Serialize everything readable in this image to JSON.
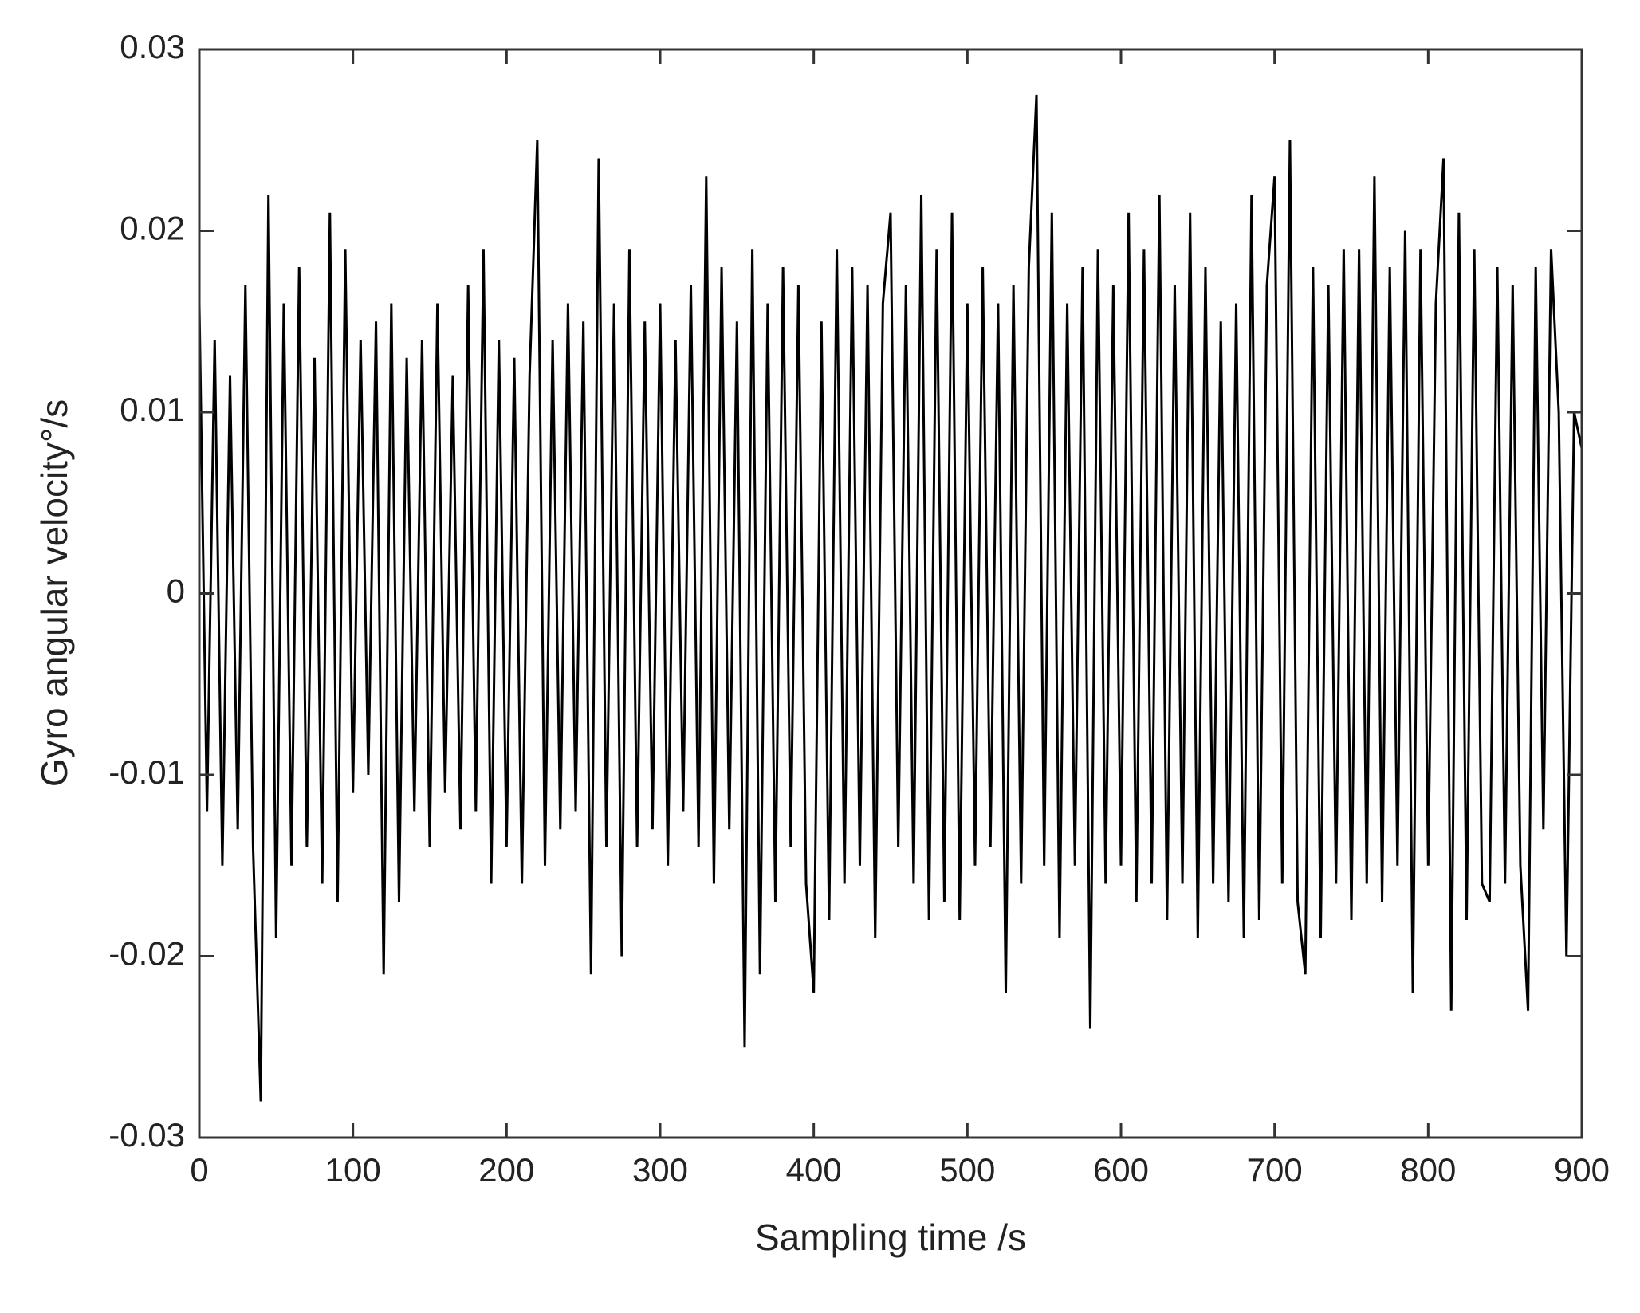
{
  "chart_data": {
    "type": "line",
    "xlabel": "Sampling time /s",
    "ylabel": "Gyro angular velocity°/s",
    "color": "#000000",
    "xlim": [
      0,
      900
    ],
    "ylim": [
      -0.03,
      0.03
    ],
    "xticks": [
      0,
      100,
      200,
      300,
      400,
      500,
      600,
      700,
      800,
      900
    ],
    "yticks": [
      -0.03,
      -0.02,
      -0.01,
      0,
      0.01,
      0.02,
      0.03
    ],
    "grid": false,
    "x": [
      0,
      5,
      10,
      15,
      20,
      25,
      30,
      35,
      40,
      45,
      50,
      55,
      60,
      65,
      70,
      75,
      80,
      85,
      90,
      95,
      100,
      105,
      110,
      115,
      120,
      125,
      130,
      135,
      140,
      145,
      150,
      155,
      160,
      165,
      170,
      175,
      180,
      185,
      190,
      195,
      200,
      205,
      210,
      215,
      220,
      225,
      230,
      235,
      240,
      245,
      250,
      255,
      260,
      265,
      270,
      275,
      280,
      285,
      290,
      295,
      300,
      305,
      310,
      315,
      320,
      325,
      330,
      335,
      340,
      345,
      350,
      355,
      360,
      365,
      370,
      375,
      380,
      385,
      390,
      395,
      400,
      405,
      410,
      415,
      420,
      425,
      430,
      435,
      440,
      445,
      450,
      455,
      460,
      465,
      470,
      475,
      480,
      485,
      490,
      495,
      500,
      505,
      510,
      515,
      520,
      525,
      530,
      535,
      540,
      545,
      550,
      555,
      560,
      565,
      570,
      575,
      580,
      585,
      590,
      595,
      600,
      605,
      610,
      615,
      620,
      625,
      630,
      635,
      640,
      645,
      650,
      655,
      660,
      665,
      670,
      675,
      680,
      685,
      690,
      695,
      700,
      705,
      710,
      715,
      720,
      725,
      730,
      735,
      740,
      745,
      750,
      755,
      760,
      765,
      770,
      775,
      780,
      785,
      790,
      795,
      800,
      805,
      810,
      815,
      820,
      825,
      830,
      835,
      840,
      845,
      850,
      855,
      860,
      865,
      870,
      875,
      880,
      885,
      890,
      895,
      900
    ],
    "values": [
      0.016,
      -0.012,
      0.014,
      -0.015,
      0.012,
      -0.013,
      0.017,
      -0.014,
      -0.028,
      0.022,
      -0.019,
      0.016,
      -0.015,
      0.018,
      -0.014,
      0.013,
      -0.016,
      0.021,
      -0.017,
      0.019,
      -0.011,
      0.014,
      -0.01,
      0.015,
      -0.021,
      0.016,
      -0.017,
      0.013,
      -0.012,
      0.014,
      -0.014,
      0.016,
      -0.011,
      0.012,
      -0.013,
      0.017,
      -0.012,
      0.019,
      -0.016,
      0.014,
      -0.014,
      0.013,
      -0.016,
      0.012,
      0.025,
      -0.015,
      0.014,
      -0.013,
      0.016,
      -0.012,
      0.015,
      -0.021,
      0.024,
      -0.014,
      0.016,
      -0.02,
      0.019,
      -0.014,
      0.015,
      -0.013,
      0.016,
      -0.015,
      0.014,
      -0.012,
      0.017,
      -0.014,
      0.023,
      -0.016,
      0.018,
      -0.013,
      0.015,
      -0.025,
      0.019,
      -0.021,
      0.016,
      -0.017,
      0.018,
      -0.014,
      0.017,
      -0.016,
      -0.022,
      0.015,
      -0.018,
      0.019,
      -0.016,
      0.018,
      -0.015,
      0.017,
      -0.019,
      0.016,
      0.021,
      -0.014,
      0.017,
      -0.016,
      0.022,
      -0.018,
      0.019,
      -0.017,
      0.021,
      -0.018,
      0.016,
      -0.015,
      0.018,
      -0.014,
      0.016,
      -0.022,
      0.017,
      -0.016,
      0.018,
      0.0275,
      -0.015,
      0.021,
      -0.019,
      0.016,
      -0.015,
      0.018,
      -0.024,
      0.019,
      -0.016,
      0.017,
      -0.015,
      0.021,
      -0.017,
      0.019,
      -0.016,
      0.022,
      -0.018,
      0.017,
      -0.016,
      0.021,
      -0.019,
      0.018,
      -0.016,
      0.015,
      -0.017,
      0.016,
      -0.019,
      0.022,
      -0.018,
      0.017,
      0.023,
      -0.016,
      0.025,
      -0.017,
      -0.021,
      0.018,
      -0.019,
      0.017,
      -0.016,
      0.019,
      -0.018,
      0.019,
      -0.016,
      0.023,
      -0.017,
      0.018,
      -0.015,
      0.02,
      -0.022,
      0.019,
      -0.015,
      0.016,
      0.024,
      -0.023,
      0.021,
      -0.018,
      0.019,
      -0.016,
      -0.017,
      0.018,
      -0.016,
      0.017,
      -0.015,
      -0.023,
      0.018,
      -0.013,
      0.019,
      0.01,
      -0.02,
      0.01,
      0.008
    ]
  }
}
